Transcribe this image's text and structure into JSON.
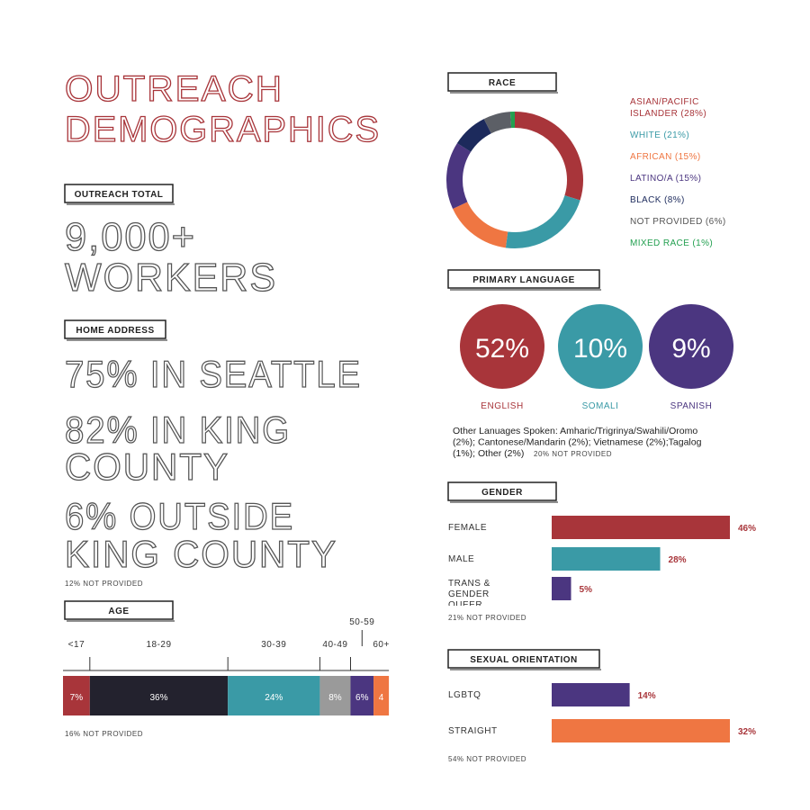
{
  "title_lines": [
    "OUTREACH",
    "DEMOGRAPHICS"
  ],
  "outreach_total": {
    "label": "OUTREACH TOTAL",
    "lines": [
      "9,000+",
      "WORKERS"
    ]
  },
  "home_address": {
    "label": "HOME ADDRESS",
    "lines": [
      "75% IN SEATTLE",
      "82% IN KING",
      "COUNTY",
      "6% OUTSIDE",
      "KING COUNTY"
    ],
    "note": "12% NOT PROVIDED"
  },
  "chart_data": [
    {
      "type": "segments",
      "title": "AGE",
      "categories": [
        "<17",
        "18-29",
        "30-39",
        "40-49",
        "50-59",
        "60+"
      ],
      "values": [
        7,
        36,
        24,
        8,
        6,
        4
      ],
      "value_labels": [
        "7%",
        "36%",
        "24%",
        "8%",
        "6%",
        "4"
      ],
      "colors": [
        "#a8353a",
        "#23222e",
        "#3a9aa6",
        "#9a9a9a",
        "#4b3680",
        "#ef7642"
      ],
      "note": "16% NOT PROVIDED"
    },
    {
      "type": "donut",
      "title": "RACE",
      "categories": [
        "ASIAN/PACIFIC ISLANDER (28%)",
        "WHITE (21%)",
        "AFRICAN (15%)",
        "LATINO/A (15%)",
        "BLACK (8%)",
        "NOT PROVIDED (6%)",
        "MIXED RACE (1%)"
      ],
      "values": [
        28,
        21,
        15,
        15,
        8,
        6,
        1
      ],
      "colors": [
        "#a8353a",
        "#3a9aa6",
        "#ef7642",
        "#4b3680",
        "#1c2a5c",
        "#5c5f66",
        "#23a050"
      ]
    },
    {
      "type": "circles",
      "title": "PRIMARY LANGUAGE",
      "categories": [
        "ENGLISH",
        "SOMALI",
        "SPANISH"
      ],
      "values": [
        52,
        10,
        9
      ],
      "value_labels": [
        "52%",
        "10%",
        "9%"
      ],
      "colors": [
        "#a8353a",
        "#3a9aa6",
        "#4b3680"
      ],
      "note_lines": [
        "Other Lanuages Spoken: Amharic/Trigrinya/Swahili/Oromo",
        "(2%); Cantonese/Mandarin (2%); Vietnamese (2%);Tagalog",
        "(1%); Other (2%)"
      ],
      "note": "20% NOT PROVIDED"
    },
    {
      "type": "hbar",
      "title": "GENDER",
      "categories": [
        "FEMALE",
        "MALE",
        "TRANS & GENDER QUEER"
      ],
      "values": [
        46,
        28,
        5
      ],
      "value_labels": [
        "46%",
        "28%",
        "5%"
      ],
      "colors": [
        "#a8353a",
        "#3a9aa6",
        "#4b3680"
      ],
      "note": "21% NOT PROVIDED"
    },
    {
      "type": "hbar",
      "title": "SEXUAL ORIENTATION",
      "categories": [
        "LGBTQ",
        "STRAIGHT"
      ],
      "values": [
        14,
        32
      ],
      "value_labels": [
        "14%",
        "32%"
      ],
      "colors": [
        "#4b3680",
        "#ef7642"
      ],
      "note": "54% NOT PROVIDED"
    }
  ]
}
